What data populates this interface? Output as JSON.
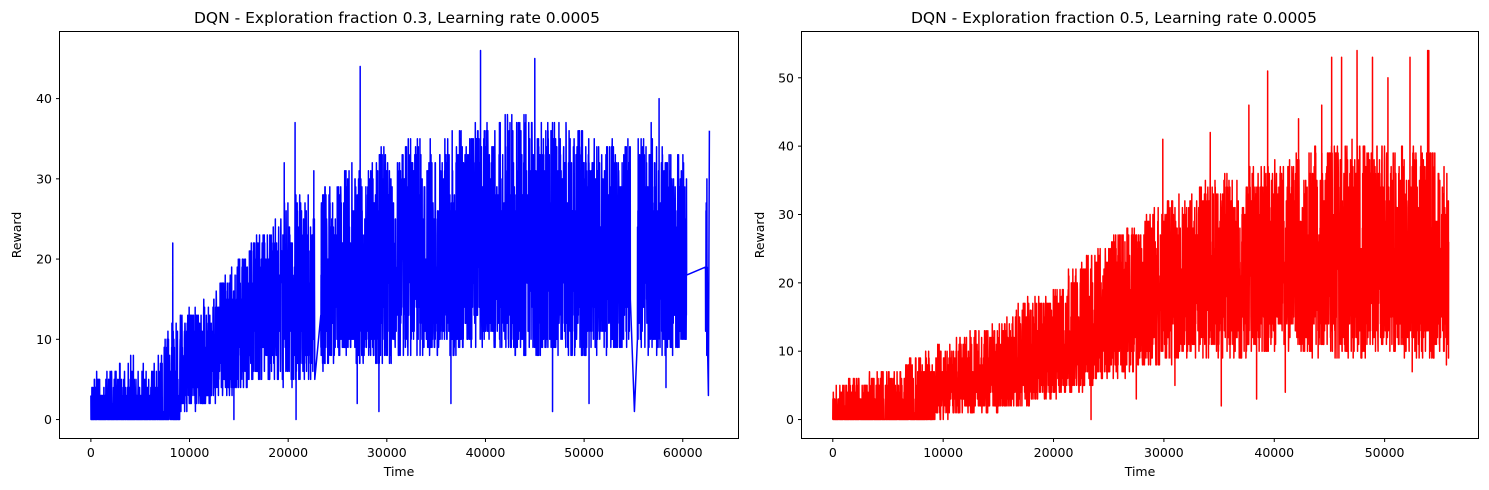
{
  "chart_data": [
    {
      "type": "line",
      "title": "DQN - Exploration fraction 0.3, Learning rate 0.0005",
      "xlabel": "Time",
      "ylabel": "Reward",
      "xlim": [
        -3130,
        65600
      ],
      "ylim": [
        -2.3,
        48.3
      ],
      "xticks": [
        0,
        10000,
        20000,
        30000,
        40000,
        50000,
        60000
      ],
      "yticks": [
        0,
        10,
        20,
        30,
        40
      ],
      "grid": false,
      "series": [
        {
          "color": "#0000ff",
          "envelope": [
            [
              0,
              0,
              6
            ],
            [
              2000,
              0,
              6
            ],
            [
              4000,
              0,
              8
            ],
            [
              6000,
              0,
              7
            ],
            [
              8000,
              0,
              12
            ],
            [
              10000,
              1,
              14
            ],
            [
              12000,
              2,
              15
            ],
            [
              14000,
              3,
              19
            ],
            [
              16000,
              4,
              22
            ],
            [
              18000,
              5,
              24
            ],
            [
              20000,
              4,
              28
            ],
            [
              22000,
              5,
              28
            ],
            [
              24000,
              6,
              30
            ],
            [
              26000,
              6,
              32
            ],
            [
              28000,
              7,
              33
            ],
            [
              30000,
              7,
              34
            ],
            [
              32000,
              8,
              35
            ],
            [
              34000,
              8,
              35
            ],
            [
              36000,
              8,
              36
            ],
            [
              38000,
              8,
              37
            ],
            [
              40000,
              9,
              38
            ],
            [
              42000,
              8,
              38
            ],
            [
              44000,
              8,
              38
            ],
            [
              46000,
              8,
              37
            ],
            [
              48000,
              8,
              37
            ],
            [
              50000,
              8,
              36
            ],
            [
              52000,
              8,
              35
            ],
            [
              54000,
              8,
              35
            ],
            [
              56000,
              8,
              35
            ],
            [
              58000,
              8,
              34
            ],
            [
              60000,
              8,
              33
            ],
            [
              62500,
              8,
              33
            ]
          ],
          "spikes": [
            [
              8300,
              22
            ],
            [
              20700,
              37
            ],
            [
              27300,
              44
            ],
            [
              39500,
              46
            ],
            [
              45000,
              45
            ],
            [
              57600,
              40
            ],
            [
              56800,
              37
            ],
            [
              49800,
              36
            ],
            [
              42000,
              38
            ],
            [
              33000,
              33
            ],
            [
              22600,
              31
            ],
            [
              19600,
              32
            ],
            [
              18700,
              25
            ],
            [
              44100,
              38
            ],
            [
              62700,
              36
            ]
          ],
          "dips": [
            [
              20800,
              0
            ],
            [
              55100,
              1
            ],
            [
              46800,
              1
            ],
            [
              29200,
              1
            ],
            [
              50500,
              2
            ],
            [
              36500,
              2
            ],
            [
              58300,
              4
            ],
            [
              62600,
              3
            ],
            [
              14500,
              0
            ],
            [
              27000,
              2
            ]
          ],
          "gaps": [
            [
              22700,
              23300
            ],
            [
              54700,
              55400
            ],
            [
              60400,
              62300
            ]
          ],
          "points": 4800
        }
      ]
    },
    {
      "type": "line",
      "title": "DQN - Exploration fraction 0.5, Learning rate 0.0005",
      "xlabel": "Time",
      "ylabel": "Reward",
      "xlim": [
        -2790,
        58460
      ],
      "ylim": [
        -2.7,
        56.7
      ],
      "xticks": [
        0,
        10000,
        20000,
        30000,
        40000,
        50000
      ],
      "yticks": [
        0,
        10,
        20,
        30,
        40,
        50
      ],
      "grid": false,
      "series": [
        {
          "color": "#ff0000",
          "envelope": [
            [
              0,
              0,
              5
            ],
            [
              2000,
              0,
              6
            ],
            [
              4000,
              0,
              7
            ],
            [
              6000,
              0,
              8
            ],
            [
              8000,
              0,
              10
            ],
            [
              10000,
              0,
              11
            ],
            [
              12000,
              1,
              13
            ],
            [
              14000,
              1,
              14
            ],
            [
              16000,
              2,
              16
            ],
            [
              18000,
              2,
              18
            ],
            [
              20000,
              3,
              20
            ],
            [
              22000,
              4,
              23
            ],
            [
              24000,
              5,
              25
            ],
            [
              26000,
              6,
              28
            ],
            [
              28000,
              7,
              30
            ],
            [
              30000,
              8,
              32
            ],
            [
              32000,
              9,
              33
            ],
            [
              34000,
              9,
              35
            ],
            [
              36000,
              9,
              36
            ],
            [
              38000,
              9,
              37
            ],
            [
              40000,
              10,
              38
            ],
            [
              42000,
              10,
              39
            ],
            [
              44000,
              9,
              40
            ],
            [
              46000,
              9,
              41
            ],
            [
              48000,
              9,
              41
            ],
            [
              50000,
              9,
              40
            ],
            [
              52000,
              9,
              40
            ],
            [
              54000,
              9,
              41
            ],
            [
              55800,
              9,
              37
            ]
          ],
          "spikes": [
            [
              39400,
              51
            ],
            [
              47500,
              54
            ],
            [
              48900,
              53
            ],
            [
              54000,
              54
            ],
            [
              52300,
              53
            ],
            [
              53900,
              54
            ],
            [
              46100,
              53
            ],
            [
              44300,
              46
            ],
            [
              29900,
              41
            ],
            [
              34200,
              42
            ],
            [
              37700,
              46
            ],
            [
              50300,
              50
            ],
            [
              45200,
              53
            ],
            [
              42200,
              44
            ]
          ],
          "dips": [
            [
              23400,
              0
            ],
            [
              35200,
              2
            ],
            [
              38400,
              3
            ],
            [
              41000,
              4
            ],
            [
              52500,
              7
            ],
            [
              55600,
              8
            ],
            [
              31000,
              5
            ],
            [
              27500,
              3
            ]
          ],
          "gaps": [],
          "points": 4800
        }
      ]
    }
  ]
}
